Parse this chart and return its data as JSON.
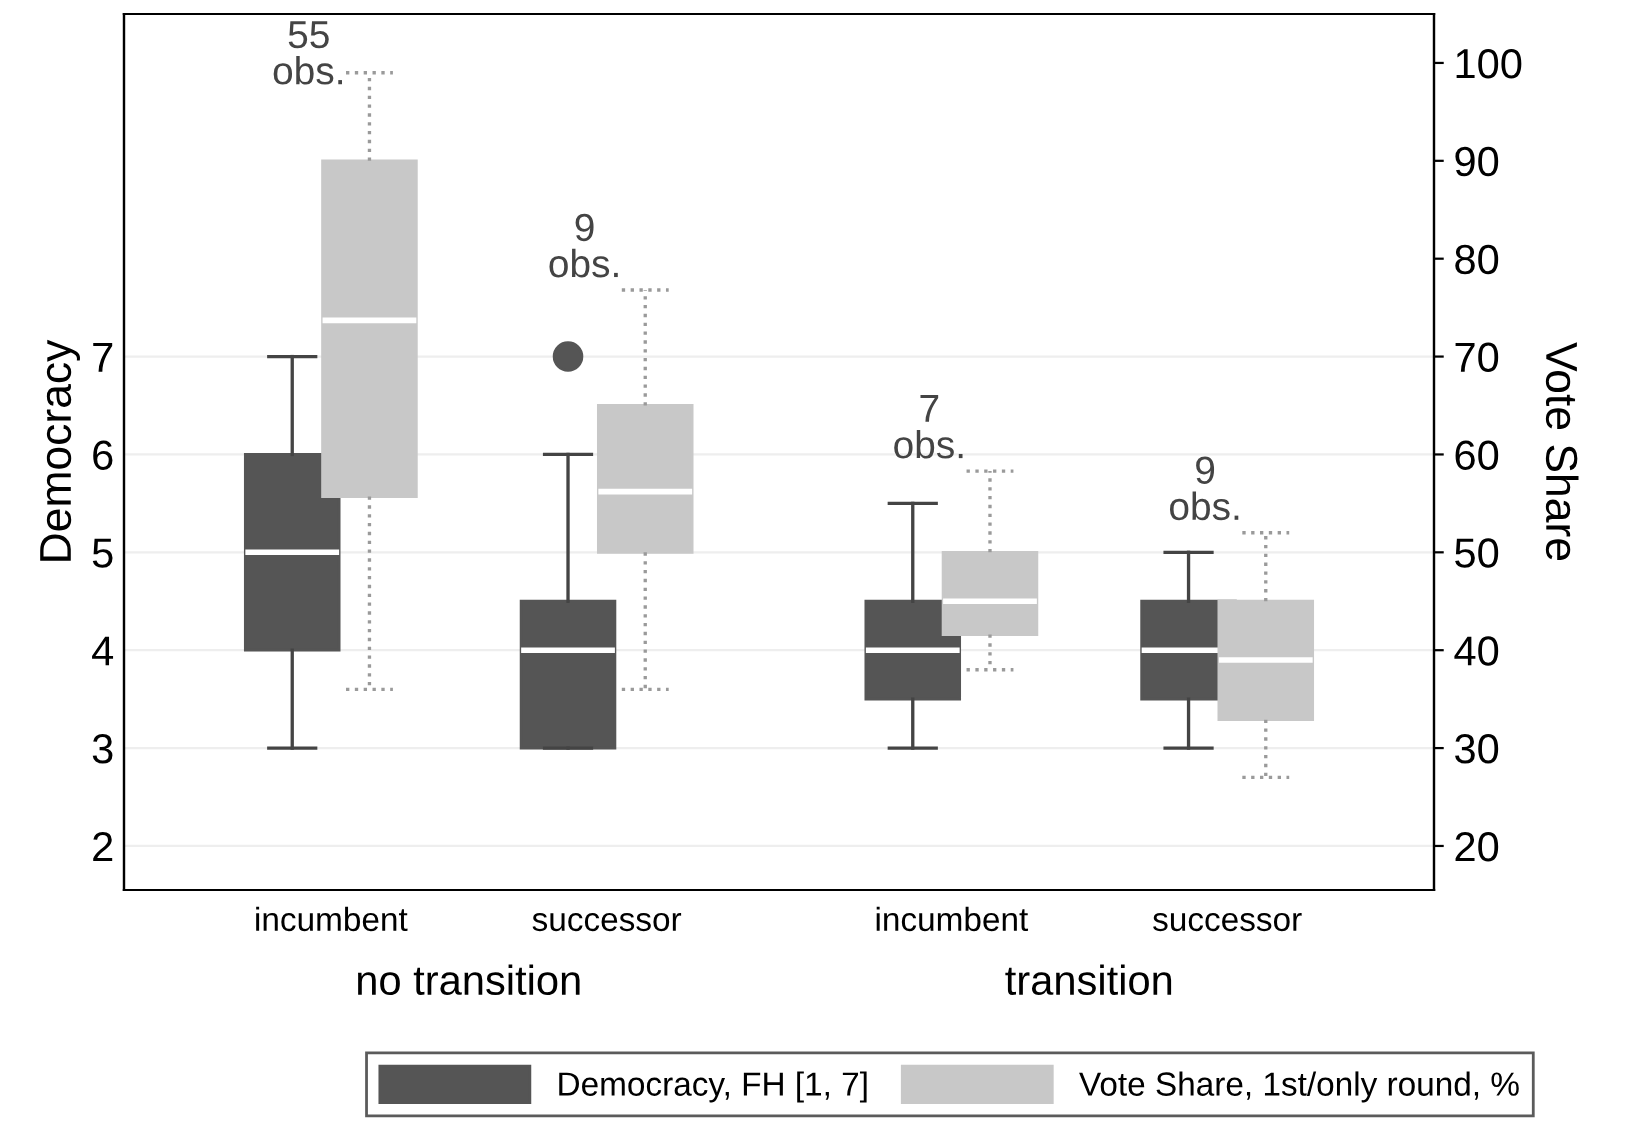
{
  "chart_data": {
    "type": "box",
    "ylabel": "Democracy",
    "y2label": "Vote Share",
    "categories": [
      "incumbent",
      "successor",
      "incumbent",
      "successor"
    ],
    "series": [
      {
        "name": "Democracy, FH [1, 7]",
        "color": "#555555",
        "boxes": [
          {
            "low": 3,
            "q1": 4,
            "median": 5,
            "q3": 6,
            "high": 7
          },
          {
            "low": 3,
            "q1": 3,
            "median": 4,
            "q3": 4.5,
            "high": 6,
            "outliers": [
              7
            ]
          },
          {
            "low": 3,
            "q1": 3.5,
            "median": 4,
            "q3": 4.5,
            "high": 5.5
          },
          {
            "low": 3,
            "q1": 3.5,
            "median": 4,
            "q3": 4.5,
            "high": 5
          }
        ]
      },
      {
        "name": "Vote Share, 1st/only round, %",
        "color": "#c8c8c8",
        "axis": "y2",
        "boxes": [
          {
            "low": 36,
            "q1": 55.7,
            "median": 73.7,
            "q3": 90,
            "high": 99
          },
          {
            "low": 36,
            "q1": 50,
            "median": 56.2,
            "q3": 65,
            "high": 76.8
          },
          {
            "low": 38,
            "q1": 41.6,
            "median": 45,
            "q3": 50,
            "high": 58.3
          },
          {
            "low": 27,
            "q1": 32.9,
            "median": 39,
            "q3": 45,
            "high": 52
          }
        ]
      }
    ],
    "ylim": [
      1.55,
      10.5
    ],
    "yticks": [
      2,
      3,
      4,
      5,
      6,
      7
    ],
    "y2lim": [
      15.5,
      105
    ],
    "y2ticks": [
      20,
      30,
      40,
      50,
      60,
      70,
      80,
      90,
      100
    ],
    "annotations": [
      "55\nobs.",
      "9\nobs.",
      "7\nobs.",
      "9\nobs.",
      "no transition",
      "transition"
    ],
    "grid": "y",
    "legend": "bottom"
  }
}
